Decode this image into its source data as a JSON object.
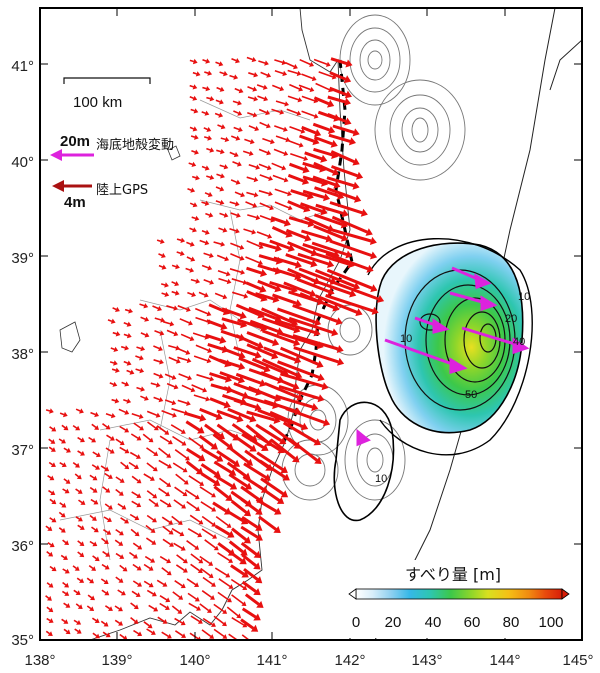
{
  "map": {
    "lon_ticks": [
      "138°",
      "139°",
      "140°",
      "141°",
      "142°",
      "143°",
      "144°",
      "145°"
    ],
    "lat_ticks": [
      "35°",
      "36°",
      "37°",
      "38°",
      "39°",
      "40°",
      "41°"
    ],
    "scale_bar_label": "100 km",
    "legend": {
      "seafloor_value": "20m",
      "seafloor_label": "海底地殻変動",
      "seafloor_color": "#dd22dd",
      "gps_value": "4m",
      "gps_label": "陸上GPS",
      "gps_color": "#aa1111"
    },
    "colorbar": {
      "title": "すべり量 [m]",
      "ticks": [
        "0",
        "20",
        "40",
        "60",
        "80",
        "100"
      ],
      "colors": [
        "#ffffff",
        "#d8eefa",
        "#8fd0f0",
        "#36b8e8",
        "#2ec6b0",
        "#3cc84a",
        "#8fd62a",
        "#d8e020",
        "#f5c016",
        "#f08a10",
        "#e84a0c",
        "#d81e08"
      ]
    },
    "contour_labels": [
      "10",
      "10",
      "20",
      "50",
      "10",
      "40"
    ],
    "arrow_color": "#e81010",
    "trench_color": "#000000"
  }
}
